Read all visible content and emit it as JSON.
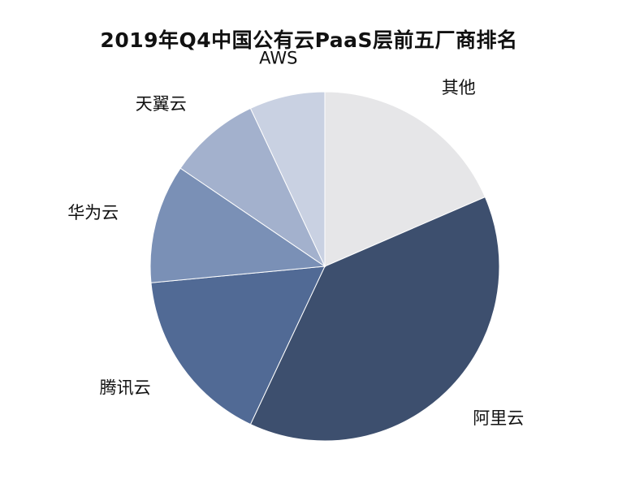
{
  "chart_data": {
    "type": "pie",
    "title": "2019年Q4中国公有云PaaS层前五厂商排名",
    "categories": [
      "其他",
      "阿里云",
      "腾讯云",
      "华为云",
      "天翼云",
      "AWS"
    ],
    "values": [
      18.5,
      38.5,
      16.5,
      11,
      8.5,
      7
    ],
    "unit": "%",
    "colors": [
      "#e6e6e8",
      "#3d4f6e",
      "#516a95",
      "#7a90b6",
      "#a3b1cd",
      "#c9d1e2"
    ],
    "start": "12 o'clock",
    "direction": "clockwise",
    "legend": "none (labels placed beside slices)"
  }
}
